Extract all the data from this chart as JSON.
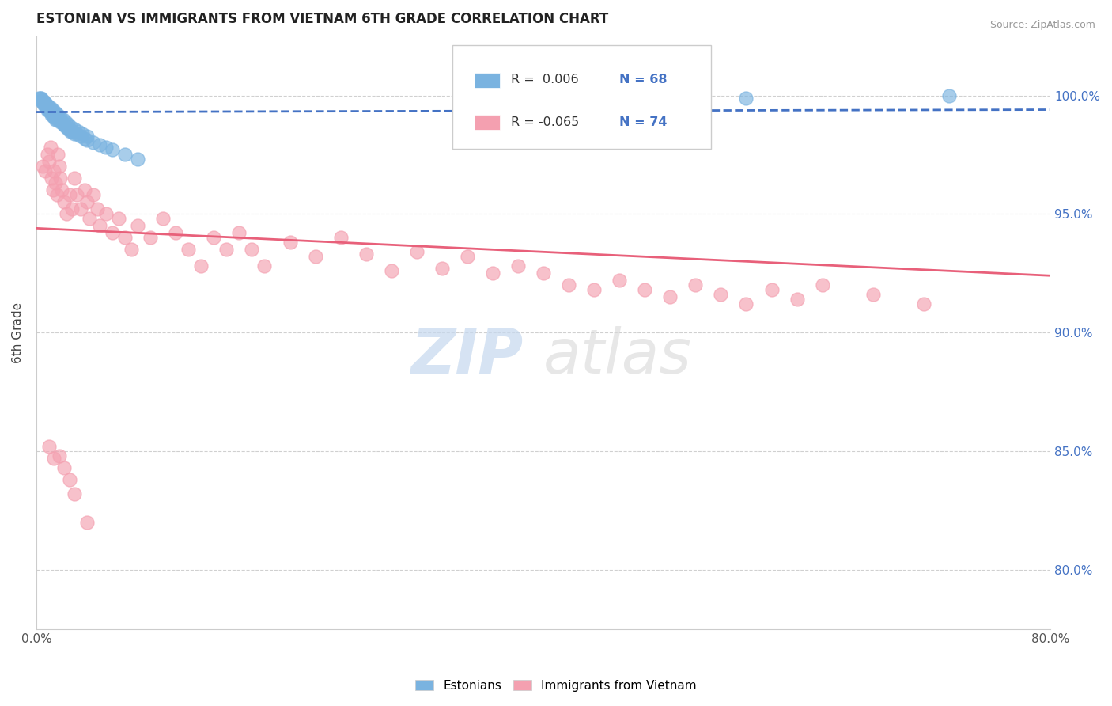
{
  "title": "ESTONIAN VS IMMIGRANTS FROM VIETNAM 6TH GRADE CORRELATION CHART",
  "source": "Source: ZipAtlas.com",
  "ylabel": "6th Grade",
  "y_ticks": [
    0.8,
    0.85,
    0.9,
    0.95,
    1.0
  ],
  "y_tick_labels": [
    "80.0%",
    "85.0%",
    "90.0%",
    "95.0%",
    "100.0%"
  ],
  "xlim": [
    0.0,
    0.8
  ],
  "ylim": [
    0.775,
    1.025
  ],
  "legend_r_blue": "0.006",
  "legend_n_blue": "68",
  "legend_r_pink": "-0.065",
  "legend_n_pink": "74",
  "blue_color": "#7ab3e0",
  "pink_color": "#f4a0b0",
  "blue_line_color": "#4472c4",
  "pink_line_color": "#e8607a",
  "watermark_zip": "ZIP",
  "watermark_atlas": "atlas",
  "blue_x": [
    0.002,
    0.003,
    0.004,
    0.004,
    0.005,
    0.005,
    0.006,
    0.006,
    0.007,
    0.007,
    0.008,
    0.008,
    0.009,
    0.009,
    0.01,
    0.01,
    0.011,
    0.011,
    0.012,
    0.012,
    0.013,
    0.013,
    0.014,
    0.014,
    0.015,
    0.015,
    0.016,
    0.017,
    0.018,
    0.019,
    0.02,
    0.021,
    0.022,
    0.023,
    0.024,
    0.025,
    0.026,
    0.027,
    0.028,
    0.03,
    0.032,
    0.035,
    0.038,
    0.04,
    0.045,
    0.05,
    0.055,
    0.06,
    0.07,
    0.08,
    0.005,
    0.007,
    0.009,
    0.011,
    0.013,
    0.015,
    0.017,
    0.019,
    0.021,
    0.023,
    0.025,
    0.027,
    0.03,
    0.033,
    0.036,
    0.04,
    0.72,
    0.56
  ],
  "blue_y": [
    0.999,
    0.999,
    0.999,
    0.998,
    0.998,
    0.997,
    0.997,
    0.996,
    0.997,
    0.996,
    0.996,
    0.995,
    0.995,
    0.994,
    0.995,
    0.994,
    0.994,
    0.993,
    0.993,
    0.992,
    0.993,
    0.992,
    0.992,
    0.991,
    0.991,
    0.99,
    0.99,
    0.991,
    0.99,
    0.989,
    0.989,
    0.988,
    0.988,
    0.987,
    0.987,
    0.986,
    0.986,
    0.985,
    0.985,
    0.984,
    0.984,
    0.983,
    0.982,
    0.981,
    0.98,
    0.979,
    0.978,
    0.977,
    0.975,
    0.973,
    0.998,
    0.997,
    0.996,
    0.995,
    0.994,
    0.993,
    0.992,
    0.991,
    0.99,
    0.989,
    0.988,
    0.987,
    0.986,
    0.985,
    0.984,
    0.983,
    1.0,
    0.999
  ],
  "pink_x": [
    0.005,
    0.007,
    0.009,
    0.01,
    0.011,
    0.012,
    0.013,
    0.014,
    0.015,
    0.016,
    0.017,
    0.018,
    0.019,
    0.02,
    0.022,
    0.024,
    0.026,
    0.028,
    0.03,
    0.032,
    0.035,
    0.038,
    0.04,
    0.042,
    0.045,
    0.048,
    0.05,
    0.055,
    0.06,
    0.065,
    0.07,
    0.075,
    0.08,
    0.09,
    0.1,
    0.11,
    0.12,
    0.13,
    0.14,
    0.15,
    0.16,
    0.17,
    0.18,
    0.2,
    0.22,
    0.24,
    0.26,
    0.28,
    0.3,
    0.32,
    0.34,
    0.36,
    0.38,
    0.4,
    0.42,
    0.44,
    0.46,
    0.48,
    0.5,
    0.52,
    0.54,
    0.56,
    0.58,
    0.6,
    0.62,
    0.66,
    0.7,
    0.01,
    0.014,
    0.018,
    0.022,
    0.026,
    0.03,
    0.04
  ],
  "pink_y": [
    0.97,
    0.968,
    0.975,
    0.972,
    0.978,
    0.965,
    0.96,
    0.968,
    0.963,
    0.958,
    0.975,
    0.97,
    0.965,
    0.96,
    0.955,
    0.95,
    0.958,
    0.952,
    0.965,
    0.958,
    0.952,
    0.96,
    0.955,
    0.948,
    0.958,
    0.952,
    0.945,
    0.95,
    0.942,
    0.948,
    0.94,
    0.935,
    0.945,
    0.94,
    0.948,
    0.942,
    0.935,
    0.928,
    0.94,
    0.935,
    0.942,
    0.935,
    0.928,
    0.938,
    0.932,
    0.94,
    0.933,
    0.926,
    0.934,
    0.927,
    0.932,
    0.925,
    0.928,
    0.925,
    0.92,
    0.918,
    0.922,
    0.918,
    0.915,
    0.92,
    0.916,
    0.912,
    0.918,
    0.914,
    0.92,
    0.916,
    0.912,
    0.852,
    0.847,
    0.848,
    0.843,
    0.838,
    0.832,
    0.82
  ],
  "blue_trend_x": [
    0.0,
    0.8
  ],
  "blue_trend_y": [
    0.993,
    0.994
  ],
  "pink_trend_x": [
    0.0,
    0.8
  ],
  "pink_trend_y": [
    0.944,
    0.924
  ]
}
